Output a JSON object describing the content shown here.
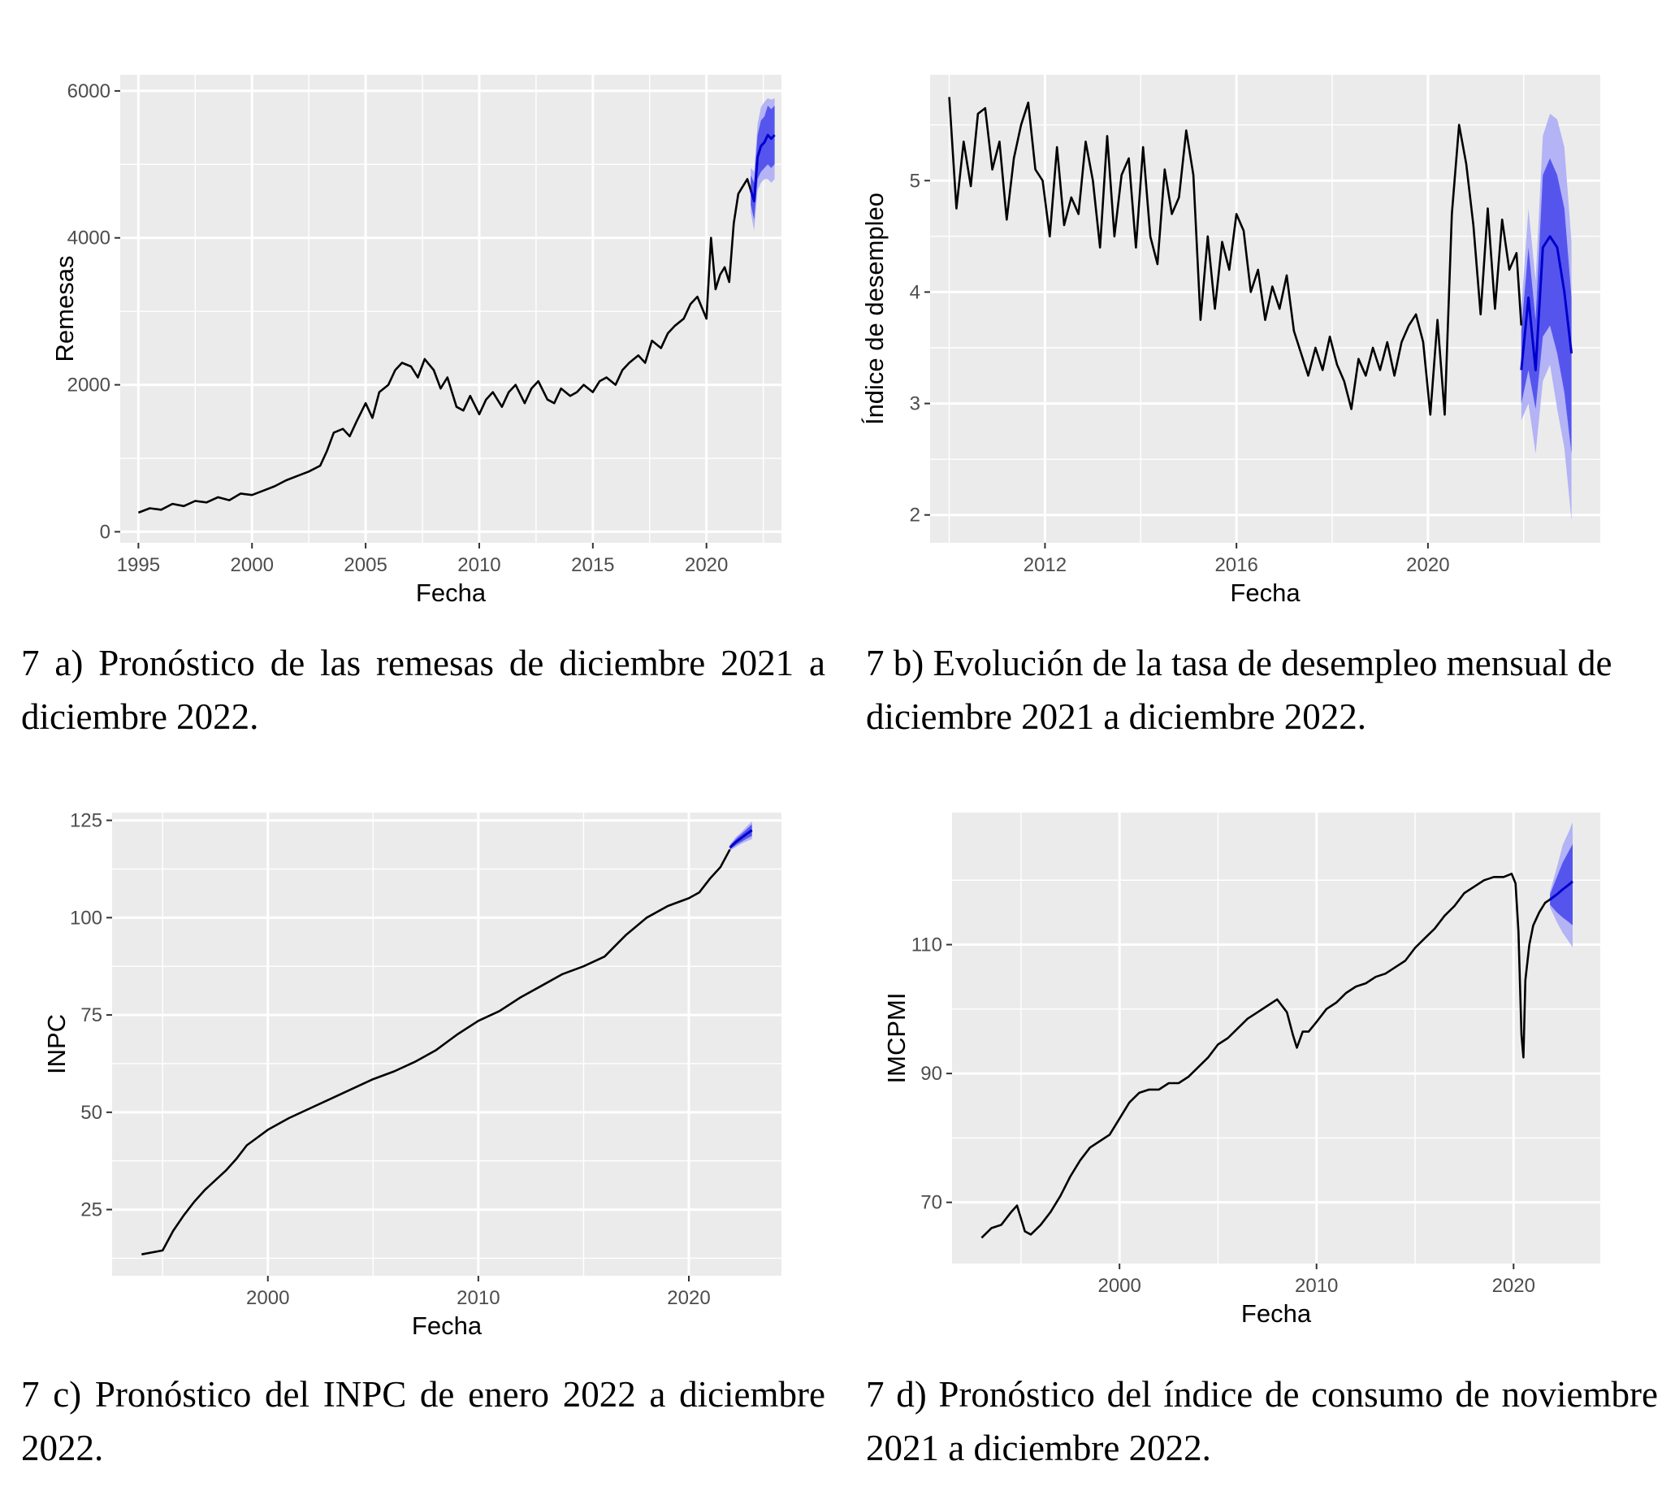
{
  "colors": {
    "panel_bg": "#EBEBEB",
    "grid": "#FFFFFF",
    "series": "#000000",
    "forecast_line": "#0000CC",
    "band80": "#5555EE",
    "band95": "#B3B3F5"
  },
  "captions": {
    "a": "7 a) Pronóstico de las remesas de diciembre 2021 a diciembre 2022.",
    "b": "7 b) Evolución de la tasa de desempleo mensual de diciembre 2021 a diciembre 2022.",
    "c": "7 c) Pronóstico del INPC de enero 2022 a diciembre 2022.",
    "d": "7 d) Pronóstico del índice de consumo de noviembre 2021 a diciembre 2022."
  },
  "chart_data": [
    {
      "id": "a",
      "type": "line",
      "xlabel": "Fecha",
      "ylabel": "Remesas",
      "xlim": [
        1994.2,
        2023.3
      ],
      "ylim": [
        -150,
        6220
      ],
      "xticks": [
        1995,
        2000,
        2005,
        2010,
        2015,
        2020
      ],
      "xtick_labels": [
        "1995",
        "2000",
        "2005",
        "2010",
        "2015",
        "2020"
      ],
      "yticks": [
        0,
        2000,
        4000,
        6000
      ],
      "ytick_labels": [
        "0",
        "2000",
        "4000",
        "6000"
      ],
      "series": {
        "name": "Remesas",
        "x": [
          1995.0,
          1995.5,
          1996.0,
          1996.5,
          1997.0,
          1997.5,
          1998.0,
          1998.5,
          1999.0,
          1999.5,
          2000.0,
          2000.5,
          2001.0,
          2001.5,
          2002.0,
          2002.5,
          2003.0,
          2003.3,
          2003.6,
          2004.0,
          2004.3,
          2004.6,
          2005.0,
          2005.3,
          2005.6,
          2006.0,
          2006.3,
          2006.6,
          2007.0,
          2007.3,
          2007.6,
          2008.0,
          2008.3,
          2008.6,
          2009.0,
          2009.3,
          2009.6,
          2010.0,
          2010.3,
          2010.6,
          2011.0,
          2011.3,
          2011.6,
          2012.0,
          2012.3,
          2012.6,
          2013.0,
          2013.3,
          2013.6,
          2014.0,
          2014.3,
          2014.6,
          2015.0,
          2015.3,
          2015.6,
          2016.0,
          2016.3,
          2016.6,
          2017.0,
          2017.3,
          2017.6,
          2018.0,
          2018.3,
          2018.6,
          2019.0,
          2019.3,
          2019.6,
          2020.0,
          2020.2,
          2020.4,
          2020.6,
          2020.8,
          2021.0,
          2021.2,
          2021.4,
          2021.6,
          2021.8,
          2021.95
        ],
        "y": [
          260,
          320,
          300,
          380,
          350,
          420,
          400,
          470,
          430,
          520,
          500,
          560,
          620,
          700,
          760,
          820,
          900,
          1100,
          1350,
          1400,
          1300,
          1500,
          1750,
          1550,
          1900,
          2000,
          2200,
          2300,
          2250,
          2100,
          2350,
          2200,
          1950,
          2100,
          1700,
          1650,
          1850,
          1600,
          1800,
          1900,
          1700,
          1900,
          2000,
          1750,
          1950,
          2050,
          1800,
          1750,
          1950,
          1850,
          1900,
          2000,
          1900,
          2050,
          2100,
          2000,
          2200,
          2300,
          2400,
          2300,
          2600,
          2500,
          2700,
          2800,
          2900,
          3100,
          3200,
          2900,
          4000,
          3300,
          3500,
          3600,
          3400,
          4200,
          4600,
          4700,
          4800,
          4650
        ]
      },
      "forecast": {
        "x": [
          2021.95,
          2022.1,
          2022.25,
          2022.4,
          2022.55,
          2022.7,
          2022.85,
          2023.0
        ],
        "mean": [
          4650,
          4500,
          5100,
          5250,
          5300,
          5400,
          5350,
          5400
        ],
        "lo80": [
          4450,
          4250,
          4800,
          4900,
          4950,
          5000,
          4950,
          5000
        ],
        "hi80": [
          4850,
          4750,
          5400,
          5600,
          5650,
          5800,
          5750,
          5800
        ],
        "lo95": [
          4350,
          4100,
          4650,
          4750,
          4800,
          4800,
          4750,
          4800
        ],
        "hi95": [
          4950,
          4900,
          5550,
          5780,
          5850,
          5900,
          5880,
          5900
        ]
      }
    },
    {
      "id": "b",
      "type": "line",
      "xlabel": "Fecha",
      "ylabel": "Índice de desempleo",
      "xlim": [
        2009.6,
        2023.6
      ],
      "ylim": [
        1.75,
        5.95
      ],
      "xticks": [
        2012,
        2016,
        2020
      ],
      "xtick_labels": [
        "2012",
        "2016",
        "2020"
      ],
      "yticks": [
        2,
        3,
        4,
        5
      ],
      "ytick_labels": [
        "2",
        "3",
        "4",
        "5"
      ],
      "series": {
        "name": "Desempleo",
        "x": [
          2010.0,
          2010.15,
          2010.3,
          2010.45,
          2010.6,
          2010.75,
          2010.9,
          2011.05,
          2011.2,
          2011.35,
          2011.5,
          2011.65,
          2011.8,
          2011.95,
          2012.1,
          2012.25,
          2012.4,
          2012.55,
          2012.7,
          2012.85,
          2013.0,
          2013.15,
          2013.3,
          2013.45,
          2013.6,
          2013.75,
          2013.9,
          2014.05,
          2014.2,
          2014.35,
          2014.5,
          2014.65,
          2014.8,
          2014.95,
          2015.1,
          2015.25,
          2015.4,
          2015.55,
          2015.7,
          2015.85,
          2016.0,
          2016.15,
          2016.3,
          2016.45,
          2016.6,
          2016.75,
          2016.9,
          2017.05,
          2017.2,
          2017.35,
          2017.5,
          2017.65,
          2017.8,
          2017.95,
          2018.1,
          2018.25,
          2018.4,
          2018.55,
          2018.7,
          2018.85,
          2019.0,
          2019.15,
          2019.3,
          2019.45,
          2019.6,
          2019.75,
          2019.9,
          2020.05,
          2020.2,
          2020.35,
          2020.5,
          2020.65,
          2020.8,
          2020.95,
          2021.1,
          2021.25,
          2021.4,
          2021.55,
          2021.7,
          2021.85,
          2021.95
        ],
        "y": [
          5.75,
          4.75,
          5.35,
          4.95,
          5.6,
          5.65,
          5.1,
          5.35,
          4.65,
          5.2,
          5.5,
          5.7,
          5.1,
          5.0,
          4.5,
          5.3,
          4.6,
          4.85,
          4.7,
          5.35,
          5.0,
          4.4,
          5.4,
          4.5,
          5.05,
          5.2,
          4.4,
          5.3,
          4.5,
          4.25,
          5.1,
          4.7,
          4.85,
          5.45,
          5.05,
          3.75,
          4.5,
          3.85,
          4.45,
          4.2,
          4.7,
          4.55,
          4.0,
          4.2,
          3.75,
          4.05,
          3.85,
          4.15,
          3.65,
          3.45,
          3.25,
          3.5,
          3.3,
          3.6,
          3.35,
          3.2,
          2.95,
          3.4,
          3.25,
          3.5,
          3.3,
          3.55,
          3.25,
          3.55,
          3.7,
          3.8,
          3.55,
          2.9,
          3.75,
          2.9,
          4.7,
          5.5,
          5.15,
          4.6,
          3.8,
          4.75,
          3.85,
          4.65,
          4.2,
          4.35,
          3.7
        ]
      },
      "forecast": {
        "x": [
          2021.95,
          2022.1,
          2022.25,
          2022.4,
          2022.55,
          2022.7,
          2022.85,
          2023.0
        ],
        "mean": [
          3.3,
          3.95,
          3.3,
          4.4,
          4.5,
          4.4,
          4.0,
          3.45
        ],
        "lo80": [
          3.0,
          3.3,
          2.95,
          3.6,
          3.7,
          3.45,
          3.1,
          2.55
        ],
        "hi80": [
          3.65,
          4.4,
          3.75,
          5.05,
          5.2,
          5.05,
          4.75,
          3.95
        ],
        "lo95": [
          2.85,
          3.0,
          2.55,
          3.2,
          3.35,
          2.95,
          2.6,
          1.95
        ],
        "hi95": [
          3.85,
          4.75,
          4.1,
          5.4,
          5.6,
          5.55,
          5.3,
          4.45
        ]
      }
    },
    {
      "id": "c",
      "type": "line",
      "xlabel": "Fecha",
      "ylabel": "INPC",
      "xlim": [
        1992.6,
        2024.4
      ],
      "ylim": [
        8,
        127
      ],
      "xticks": [
        2000,
        2010,
        2020
      ],
      "xtick_labels": [
        "2000",
        "2010",
        "2020"
      ],
      "yticks": [
        25,
        50,
        75,
        100,
        125
      ],
      "ytick_labels": [
        "25",
        "50",
        "75",
        "100",
        "125"
      ],
      "series": {
        "name": "INPC",
        "x": [
          1994.0,
          1995.0,
          1995.5,
          1996.0,
          1996.5,
          1997.0,
          1997.5,
          1998.0,
          1998.5,
          1999.0,
          1999.5,
          2000.0,
          2001.0,
          2002.0,
          2003.0,
          2004.0,
          2005.0,
          2006.0,
          2007.0,
          2008.0,
          2009.0,
          2010.0,
          2011.0,
          2012.0,
          2013.0,
          2014.0,
          2015.0,
          2016.0,
          2017.0,
          2018.0,
          2019.0,
          2020.0,
          2020.5,
          2021.0,
          2021.5,
          2021.95
        ],
        "y": [
          13.5,
          14.5,
          19.5,
          23.5,
          27.0,
          30.0,
          32.5,
          35.0,
          38.0,
          41.5,
          43.5,
          45.5,
          48.5,
          51.0,
          53.5,
          56.0,
          58.5,
          60.5,
          63.0,
          66.0,
          70.0,
          73.5,
          76.0,
          79.5,
          82.5,
          85.5,
          87.5,
          90.0,
          95.5,
          100.0,
          103.0,
          105.0,
          106.5,
          110.0,
          113.0,
          117.5
        ]
      },
      "forecast": {
        "x": [
          2021.95,
          2022.25,
          2022.5,
          2022.75,
          2023.0
        ],
        "mean": [
          118.0,
          119.5,
          120.5,
          121.5,
          122.5
        ],
        "lo80": [
          117.5,
          118.7,
          119.5,
          120.3,
          121.0
        ],
        "hi80": [
          118.5,
          120.3,
          121.5,
          122.7,
          124.0
        ],
        "lo95": [
          117.2,
          118.2,
          119.0,
          119.6,
          120.2
        ],
        "hi95": [
          118.8,
          120.8,
          122.0,
          123.4,
          124.8
        ]
      }
    },
    {
      "id": "d",
      "type": "line",
      "xlabel": "Fecha",
      "ylabel": "IMCPMI",
      "xlim": [
        1991.5,
        2024.4
      ],
      "ylim": [
        60.5,
        130.5
      ],
      "xticks": [
        2000,
        2010,
        2020
      ],
      "xtick_labels": [
        "2000",
        "2010",
        "2020"
      ],
      "yticks": [
        70,
        90,
        110
      ],
      "ytick_labels": [
        "70",
        "90",
        "110"
      ],
      "series": {
        "name": "IMCPMI",
        "x": [
          1993.0,
          1993.5,
          1994.0,
          1994.5,
          1994.8,
          1995.2,
          1995.5,
          1996.0,
          1996.5,
          1997.0,
          1997.5,
          1998.0,
          1998.5,
          1999.0,
          1999.5,
          2000.0,
          2000.5,
          2001.0,
          2001.5,
          2002.0,
          2002.5,
          2003.0,
          2003.5,
          2004.0,
          2004.5,
          2005.0,
          2005.5,
          2006.0,
          2006.5,
          2007.0,
          2007.5,
          2008.0,
          2008.5,
          2008.8,
          2009.0,
          2009.3,
          2009.6,
          2010.0,
          2010.5,
          2011.0,
          2011.5,
          2012.0,
          2012.5,
          2013.0,
          2013.5,
          2014.0,
          2014.5,
          2015.0,
          2015.5,
          2016.0,
          2016.5,
          2017.0,
          2017.5,
          2018.0,
          2018.5,
          2019.0,
          2019.5,
          2019.9,
          2020.1,
          2020.25,
          2020.4,
          2020.5,
          2020.6,
          2020.8,
          2021.0,
          2021.3,
          2021.6,
          2021.85
        ],
        "y": [
          64.5,
          66.0,
          66.5,
          68.5,
          69.5,
          65.5,
          65.0,
          66.5,
          68.5,
          71.0,
          74.0,
          76.5,
          78.5,
          79.5,
          80.5,
          83.0,
          85.5,
          87.0,
          87.5,
          87.5,
          88.5,
          88.5,
          89.5,
          91.0,
          92.5,
          94.5,
          95.5,
          97.0,
          98.5,
          99.5,
          100.5,
          101.5,
          99.5,
          96.0,
          94.0,
          96.5,
          96.5,
          98.0,
          100.0,
          101.0,
          102.5,
          103.5,
          104.0,
          105.0,
          105.5,
          106.5,
          107.5,
          109.5,
          111.0,
          112.5,
          114.5,
          116.0,
          118.0,
          119.0,
          120.0,
          120.5,
          120.5,
          121.0,
          119.5,
          112.0,
          96.0,
          92.5,
          104.5,
          110.0,
          113.0,
          115.0,
          116.5,
          117.0
        ]
      },
      "forecast": {
        "x": [
          2021.85,
          2022.2,
          2022.5,
          2022.8,
          2023.0
        ],
        "mean": [
          117.0,
          117.8,
          118.6,
          119.3,
          119.8
        ],
        "lo80": [
          116.2,
          115.0,
          114.2,
          113.5,
          113.0
        ],
        "hi80": [
          117.8,
          120.5,
          122.8,
          124.5,
          125.6
        ],
        "lo95": [
          115.8,
          113.5,
          111.8,
          110.5,
          109.6
        ],
        "hi95": [
          118.2,
          122.0,
          125.5,
          127.5,
          129.0
        ]
      }
    }
  ]
}
